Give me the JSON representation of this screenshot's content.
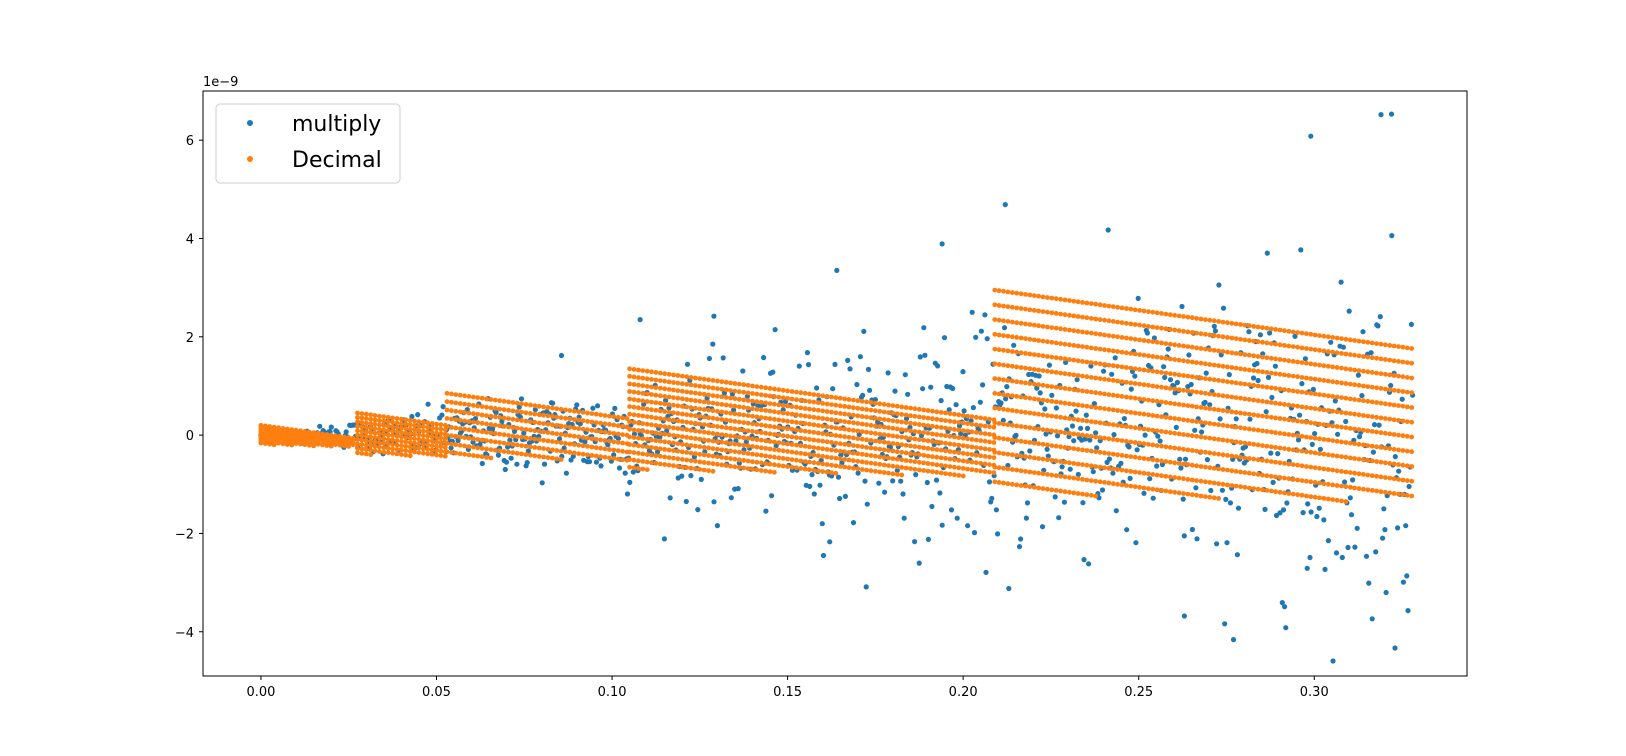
{
  "chart_data": {
    "type": "scatter",
    "title": "",
    "xlabel": "",
    "ylabel": "",
    "y_offset_label": "1e−9",
    "xlim": [
      -0.0165,
      0.3435
    ],
    "ylim": [
      -4.9,
      7.0
    ],
    "grid": false,
    "legend_position": "top-left",
    "x_ticks": [
      0.0,
      0.05,
      0.1,
      0.15,
      0.2,
      0.25,
      0.3
    ],
    "x_tick_labels": [
      "0.00",
      "0.05",
      "0.10",
      "0.15",
      "0.20",
      "0.25",
      "0.30"
    ],
    "y_ticks": [
      -4,
      -2,
      0,
      2,
      4,
      6
    ],
    "y_tick_labels": [
      "−4",
      "−2",
      "0",
      "2",
      "4",
      "6"
    ],
    "series": [
      {
        "name": "multiply",
        "color": "#1f77b4",
        "marker": "circle",
        "description": "Random rounding error of x multiplied by a factor; spread grows roughly linearly with x (|error| up to ~6.5e-9 near x=0.32)",
        "envelope_slope": 16.5,
        "x_range": [
          0.0,
          0.328
        ],
        "n_points": 1000,
        "sample_points": [
          [
            0.323,
            -4.33
          ],
          [
            0.322,
            6.53
          ],
          [
            0.319,
            6.52
          ],
          [
            0.299,
            6.08
          ],
          [
            0.277,
            -4.16
          ],
          [
            0.263,
            -3.68
          ],
          [
            0.213,
            -3.12
          ],
          [
            0.298,
            -2.71
          ],
          [
            0.194,
            3.89
          ],
          [
            0.212,
            4.69
          ],
          [
            0.164,
            3.35
          ],
          [
            0.129,
            2.42
          ],
          [
            0.108,
            2.35
          ],
          [
            0.162,
            -2.17
          ],
          [
            0.13,
            -1.84
          ],
          [
            0.0856,
            1.62
          ]
        ]
      },
      {
        "name": "Decimal",
        "color": "#ff7f0e",
        "marker": "circle",
        "description": "Quantized error bands; within each segment the error decreases linearly with x, with step changes at x ≈ 0.027, 0.053, 0.105, 0.209",
        "segments": [
          {
            "x_start": 0.0,
            "x_end": 0.0275,
            "slope": -10.0,
            "band_step": 0.045,
            "y_min": -0.15,
            "y_max": 0.2
          },
          {
            "x_start": 0.0275,
            "x_end": 0.053,
            "slope": -10.0,
            "band_step": 0.09,
            "y_min": -0.35,
            "y_max": 0.45
          },
          {
            "x_start": 0.053,
            "x_end": 0.105,
            "slope": -10.0,
            "band_step": 0.17,
            "y_min": -0.4,
            "y_max": 0.85
          },
          {
            "x_start": 0.105,
            "x_end": 0.209,
            "slope": -10.0,
            "band_step": 0.154,
            "y_min": -0.65,
            "y_max": 1.35
          },
          {
            "x_start": 0.209,
            "x_end": 0.328,
            "slope": -10.0,
            "band_step": 0.3,
            "y_min": -1.15,
            "y_max": 2.95
          }
        ]
      }
    ]
  },
  "legend": {
    "items": [
      {
        "label": "multiply",
        "color": "#1f77b4"
      },
      {
        "label": "Decimal",
        "color": "#ff7f0e"
      }
    ]
  }
}
